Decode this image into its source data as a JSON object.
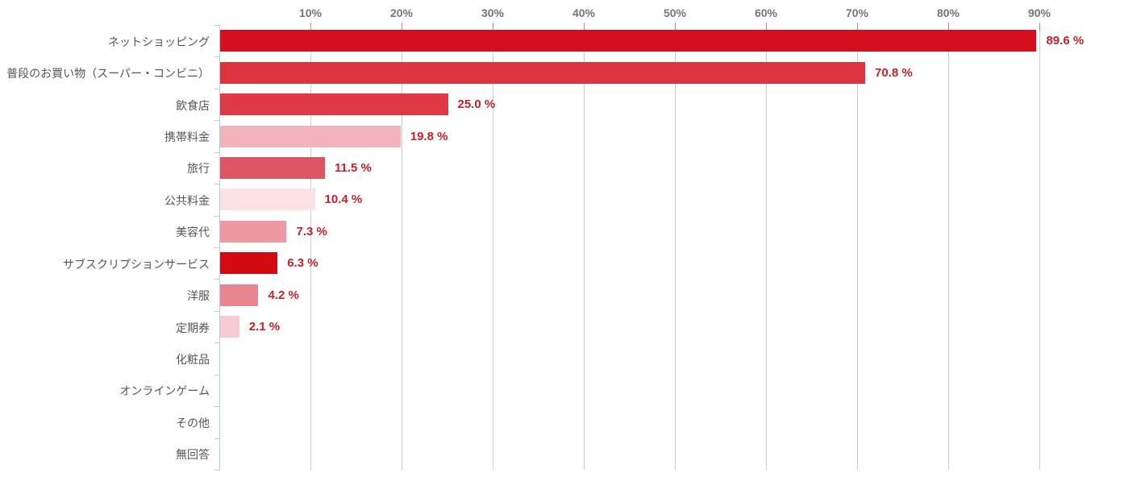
{
  "chart_data": {
    "type": "bar",
    "orientation": "horizontal",
    "title": "",
    "xlabel": "",
    "ylabel": "",
    "xlim": [
      0,
      90
    ],
    "grid": true,
    "legend": false,
    "categories": [
      "ネットショッピング",
      "普段のお買い物（スーパー・コンビニ）",
      "飲食店",
      "携帯料金",
      "旅行",
      "公共料金",
      "美容代",
      "サブスクリプションサービス",
      "洋服",
      "定期券",
      "化粧品",
      "オンラインゲーム",
      "その他",
      "無回答"
    ],
    "values": [
      89.6,
      70.8,
      25.0,
      19.8,
      11.5,
      10.4,
      7.3,
      6.3,
      4.2,
      2.1,
      0,
      0,
      0,
      0
    ],
    "value_labels": [
      "89.6 %",
      "70.8 %",
      "25.0 %",
      "19.8 %",
      "11.5 %",
      "10.4 %",
      "7.3 %",
      "6.3 %",
      "4.2 %",
      "2.1 %",
      "",
      "",
      "",
      ""
    ],
    "bar_colors": [
      "#d50f1e",
      "#dd3440",
      "#de3a46",
      "#f3b3ba",
      "#dc5763",
      "#fbe2e4",
      "#ee98a2",
      "#d20a12",
      "#e9858f",
      "#f6cbd1",
      "#ffffff",
      "#ffffff",
      "#ffffff",
      "#ffffff"
    ],
    "x_ticks": [
      10,
      20,
      30,
      40,
      50,
      60,
      70,
      80,
      90
    ],
    "x_tick_labels": [
      "10%",
      "20%",
      "30%",
      "40%",
      "50%",
      "60%",
      "70%",
      "80%",
      "90%"
    ],
    "colors": {
      "value_label": "#c8202d",
      "gridline": "#cccccc",
      "top_tick": "#999999",
      "tick_label": "#757575",
      "category_label": "#555555",
      "y_axis_line": "#b7ced9",
      "y_axis_tick": "#b7ced9",
      "background": "#ffffff"
    }
  }
}
